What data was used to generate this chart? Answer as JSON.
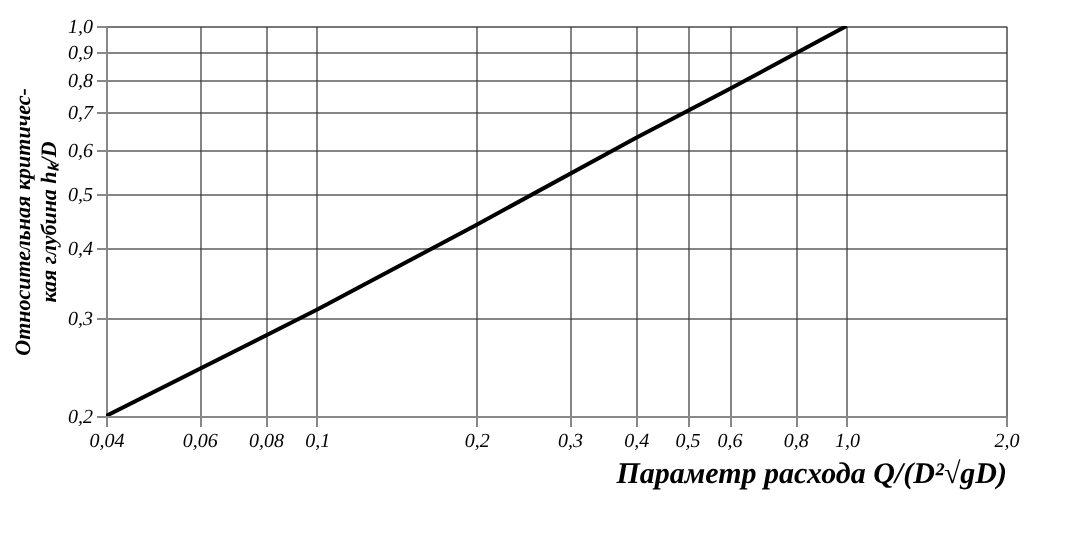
{
  "chart_data": {
    "type": "line",
    "xlabel": "Параметр расхода   Q/(D²√gD)",
    "ylabel": "Относительная критичес-\nкая глубина   hₖ/D",
    "x": [
      0.04,
      0.1,
      0.2,
      0.4,
      0.6,
      1.0
    ],
    "series": [
      {
        "color": "#000000",
        "values": [
          0.2,
          0.31,
          0.44,
          0.63,
          0.77,
          1.0
        ]
      }
    ],
    "log": "xy",
    "xlim": [
      0.04,
      2.0
    ],
    "ylim": [
      0.2,
      1.0
    ],
    "xticks": [
      {
        "value": 0.04,
        "label": "0,04"
      },
      {
        "value": 0.06,
        "label": "0,06"
      },
      {
        "value": 0.08,
        "label": "0,08"
      },
      {
        "value": 0.1,
        "label": "0,1"
      },
      {
        "value": 0.2,
        "label": "0,2"
      },
      {
        "value": 0.3,
        "label": "0,3"
      },
      {
        "value": 0.4,
        "label": "0,4"
      },
      {
        "value": 0.5,
        "label": "0,5"
      },
      {
        "value": 0.6,
        "label": "0,6"
      },
      {
        "value": 0.8,
        "label": "0,8"
      },
      {
        "value": 1.0,
        "label": "1,0"
      },
      {
        "value": 2.0,
        "label": "2,0"
      }
    ],
    "yticks": [
      {
        "value": 0.2,
        "label": "0,2"
      },
      {
        "value": 0.3,
        "label": "0,3"
      },
      {
        "value": 0.4,
        "label": "0,4"
      },
      {
        "value": 0.5,
        "label": "0,5"
      },
      {
        "value": 0.6,
        "label": "0,6"
      },
      {
        "value": 0.7,
        "label": "0,7"
      },
      {
        "value": 0.8,
        "label": "0,8"
      },
      {
        "value": 0.9,
        "label": "0,9"
      },
      {
        "value": 1.0,
        "label": "1,0"
      }
    ],
    "grid": true,
    "marker": "none",
    "line_style": "solid",
    "legend": false
  }
}
